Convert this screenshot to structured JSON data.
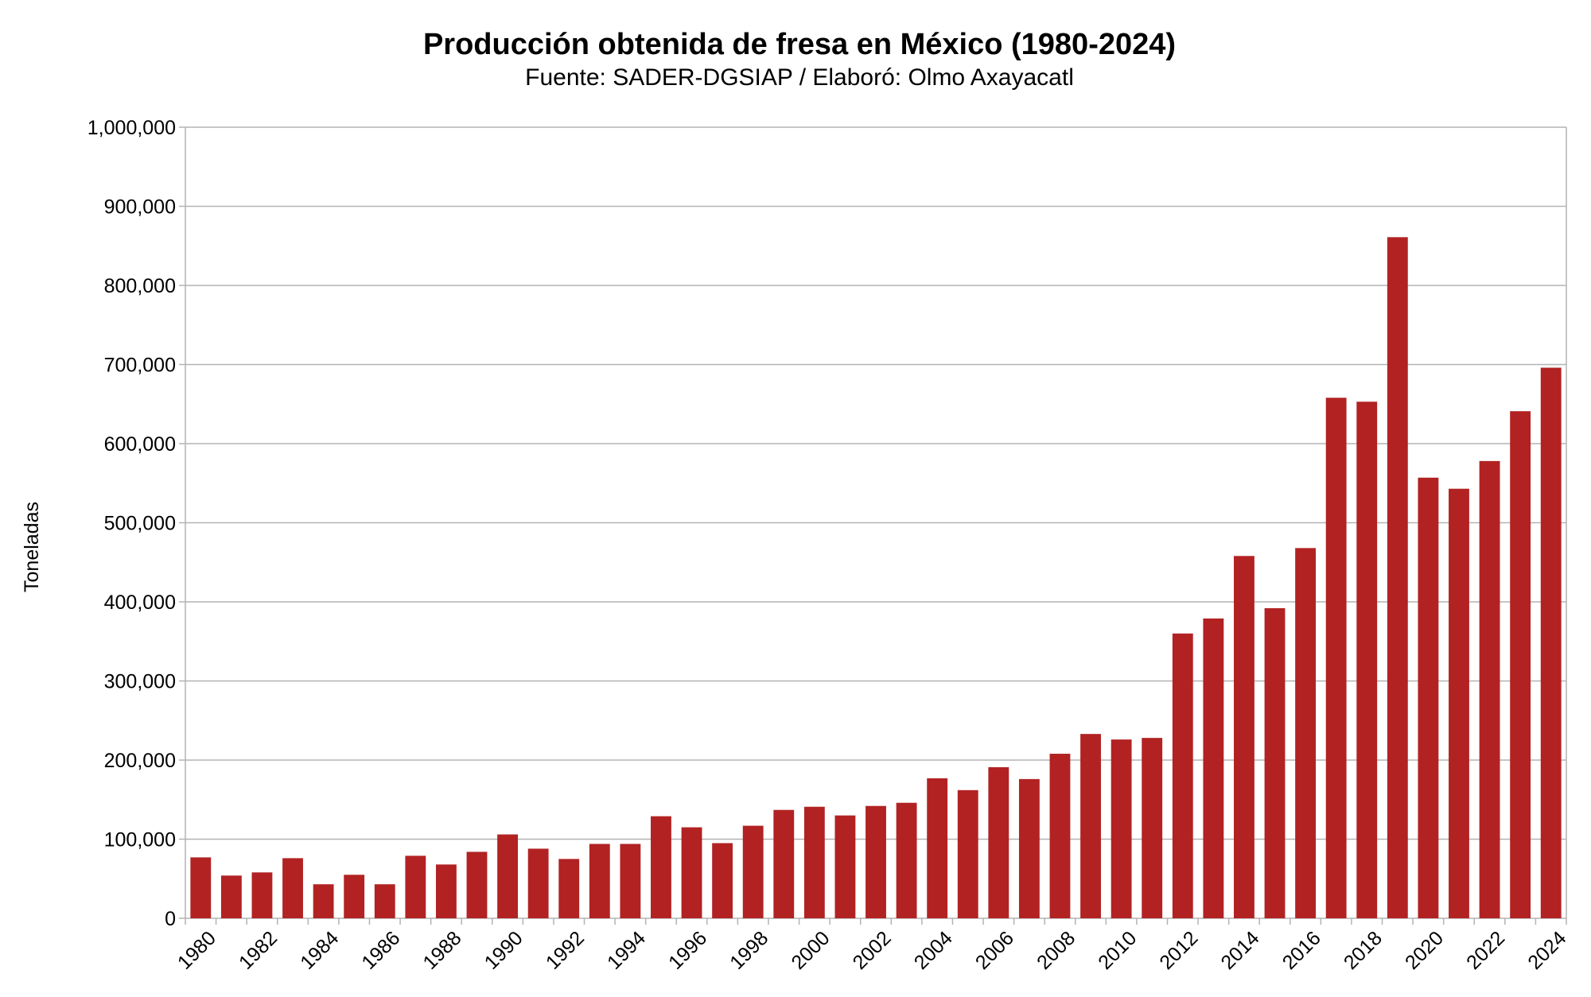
{
  "chart_data": {
    "type": "bar",
    "title": "Producción obtenida de fresa en México (1980-2024)",
    "subtitle": "Fuente: SADER-DGSIAP / Elaboró: Olmo Axayacatl",
    "xlabel": "",
    "ylabel": "Toneladas",
    "ylim": [
      0,
      1000000
    ],
    "yticks": [
      0,
      100000,
      200000,
      300000,
      400000,
      500000,
      600000,
      700000,
      800000,
      900000,
      1000000
    ],
    "ytick_labels": [
      "0",
      "100,000",
      "200,000",
      "300,000",
      "400,000",
      "500,000",
      "600,000",
      "700,000",
      "800,000",
      "900,000",
      "1,000,000"
    ],
    "grid": "horizontal",
    "bar_color": "#b22222",
    "categories": [
      "1980",
      "1981",
      "1982",
      "1983",
      "1984",
      "1985",
      "1986",
      "1987",
      "1988",
      "1989",
      "1990",
      "1991",
      "1992",
      "1993",
      "1994",
      "1995",
      "1996",
      "1997",
      "1998",
      "1999",
      "2000",
      "2001",
      "2002",
      "2003",
      "2004",
      "2005",
      "2006",
      "2007",
      "2008",
      "2009",
      "2010",
      "2011",
      "2012",
      "2013",
      "2014",
      "2015",
      "2016",
      "2017",
      "2018",
      "2019",
      "2020",
      "2021",
      "2022",
      "2023",
      "2024"
    ],
    "xtick_labels": [
      "1980",
      "1982",
      "1984",
      "1986",
      "1988",
      "1990",
      "1992",
      "1994",
      "1996",
      "1998",
      "2000",
      "2002",
      "2004",
      "2006",
      "2008",
      "2010",
      "2012",
      "2014",
      "2016",
      "2018",
      "2020",
      "2022",
      "2024"
    ],
    "values": [
      77000,
      54000,
      58000,
      76000,
      43000,
      55000,
      43000,
      79000,
      68000,
      84000,
      106000,
      88000,
      75000,
      94000,
      94000,
      129000,
      115000,
      95000,
      117000,
      137000,
      141000,
      130000,
      142000,
      146000,
      177000,
      162000,
      191000,
      176000,
      208000,
      233000,
      226000,
      228000,
      360000,
      379000,
      458000,
      392000,
      468000,
      658000,
      653000,
      861000,
      557000,
      543000,
      578000,
      641000,
      696000
    ]
  }
}
